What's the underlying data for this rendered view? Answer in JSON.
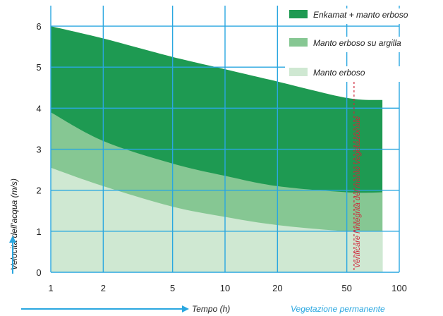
{
  "chart_data": {
    "type": "area",
    "x_scale": "log",
    "xlim": [
      1,
      100
    ],
    "ylim": [
      0,
      6.5
    ],
    "xticks": [
      1,
      2,
      5,
      10,
      20,
      50,
      100
    ],
    "yticks": [
      0,
      1,
      2,
      3,
      4,
      5,
      6
    ],
    "xlabel": "Tempo (h)",
    "ylabel": "Velocità dell'acqua (m/s)",
    "grid": true,
    "legend_position": "top-right",
    "series": [
      {
        "name": "Enkamat + manto erboso",
        "color": "#1e9a52",
        "x": [
          1,
          2,
          5,
          10,
          20,
          50,
          80
        ],
        "y": [
          6.0,
          5.7,
          5.25,
          4.95,
          4.65,
          4.25,
          4.2
        ]
      },
      {
        "name": "Manto erboso su argilla",
        "color": "#86c793",
        "x": [
          1,
          2,
          5,
          10,
          20,
          50,
          80
        ],
        "y": [
          3.9,
          3.2,
          2.65,
          2.35,
          2.1,
          1.95,
          1.95
        ]
      },
      {
        "name": "Manto erboso",
        "color": "#cfe8d2",
        "x": [
          1,
          2,
          5,
          10,
          20,
          50,
          80
        ],
        "y": [
          2.55,
          2.1,
          1.6,
          1.35,
          1.15,
          1.0,
          1.0
        ]
      }
    ],
    "annotations": {
      "vertical_note": "Verificare l'integrità del manto vegetazionale",
      "vertical_note_x": 55,
      "permanent_label": "Vegetazione permanente"
    },
    "colors": {
      "grid": "#2aa7e0",
      "note": "#d0253a",
      "arrow": "#2aa7e0"
    }
  }
}
